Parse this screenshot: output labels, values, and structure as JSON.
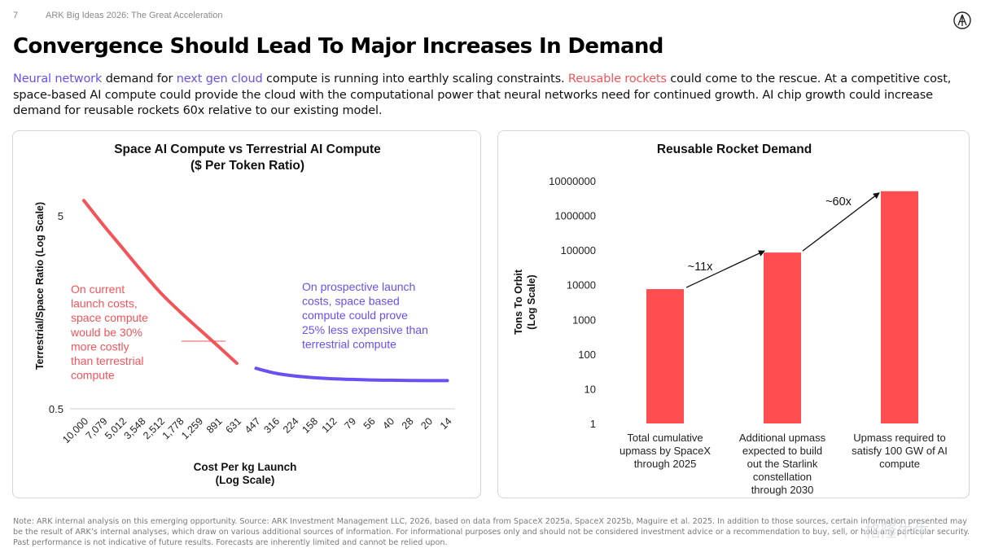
{
  "header": {
    "page_number": "7",
    "deck_title": "ARK Big Ideas 2026: The Great Acceleration"
  },
  "icons": {
    "logo": "ark-logo-icon"
  },
  "headline": "Convergence Should Lead To Major Increases In Demand",
  "intro": {
    "part1": "Neural network",
    "part2": " demand for ",
    "part3": "next gen cloud",
    "part4": " compute is running into earthly scaling constraints. ",
    "part5": "Reusable rockets",
    "part6": " could come to the rescue. At a competitive cost, space-based AI compute could provide the cloud with the computational power that neural networks need for continued growth. AI chip growth could increase demand for reusable rockets 60x relative to our existing model."
  },
  "colors": {
    "red": "#f4535a",
    "purple": "#6b4ff2",
    "bar_red": "#ff4d50"
  },
  "chart_data": [
    {
      "type": "line",
      "title": "Space AI Compute vs Terrestrial AI Compute",
      "subtitle": "($ Per Token Ratio)",
      "xlabel": "Cost Per kg Launch",
      "xlabel2": "(Log Scale)",
      "ylabel": "Terrestrial/Space Ratio (Log Scale)",
      "y_scale": "log",
      "y_ticks": [
        {
          "label": "5",
          "value": 5
        },
        {
          "label": "0.5",
          "value": 0.5
        }
      ],
      "ylim": [
        0.5,
        5
      ],
      "categories": [
        "10,000",
        "7,079",
        "5,012",
        "3,548",
        "2,512",
        "1,778",
        "1,259",
        "891",
        "631",
        "447",
        "316",
        "224",
        "158",
        "112",
        "79",
        "56",
        "40",
        "28",
        "20",
        "14"
      ],
      "series": [
        {
          "segment": "current",
          "color": "#f4535a",
          "x": [
            "10,000",
            "7,079",
            "5,012",
            "3,548",
            "2,512",
            "1,778",
            "1,259",
            "891",
            "631"
          ],
          "values": [
            6.0,
            4.5,
            3.42,
            2.6,
            2.0,
            1.6,
            1.3,
            1.06,
            0.86
          ]
        },
        {
          "segment": "prospective",
          "color": "#6b4ff2",
          "x": [
            "447",
            "316",
            "224",
            "158",
            "112",
            "79",
            "56",
            "40",
            "28",
            "20",
            "14"
          ],
          "values": [
            0.81,
            0.765,
            0.74,
            0.725,
            0.715,
            0.71,
            0.705,
            0.703,
            0.701,
            0.7,
            0.7
          ]
        }
      ],
      "annotations": {
        "current": [
          "On current",
          "launch costs,",
          "space compute",
          "would be 30%",
          "more costly",
          "than terrestrial",
          "compute"
        ],
        "prospective": [
          "On prospective launch",
          "costs, space based",
          "compute could prove",
          "25% less expensive than",
          "terrestrial compute"
        ]
      }
    },
    {
      "type": "bar",
      "title": "Reusable Rocket Demand",
      "ylabel": "Tons To Orbit",
      "ylabel2": "(Log Scale)",
      "y_scale": "log",
      "ylim": [
        1,
        10000000
      ],
      "y_ticks": [
        "1",
        "10",
        "100",
        "1000",
        "10000",
        "100000",
        "1000000",
        "10000000"
      ],
      "categories": [
        [
          "Total cumulative",
          "upmass by SpaceX",
          "through 2025"
        ],
        [
          "Additional upmass",
          "expected to build",
          "out the Starlink",
          "constellation",
          "through 2030"
        ],
        [
          "Upmass required to",
          "satisfy 100 GW of AI",
          "compute"
        ]
      ],
      "values": [
        7500,
        85000,
        5000000
      ],
      "color": "#ff4d50",
      "annotations": [
        "~11x",
        "~60x"
      ]
    }
  ],
  "footnote": "Note: ARK internal analysis on this emerging opportunity. Source: ARK Investment Management LLC, 2026, based on data from SpaceX 2025a, SpaceX 2025b, Maguire et al. 2025. In addition to those sources, certain information presented may be the result of ARK’s internal analyses, which draw on various additional sources of information. For informational purposes only and should not be considered investment advice or a recommendation to buy, sell, or hold any particular security. Past performance is not indicative of future results. Forecasts are inherently limited and cannot be relied upon.",
  "watermark": "格隆牛牛"
}
